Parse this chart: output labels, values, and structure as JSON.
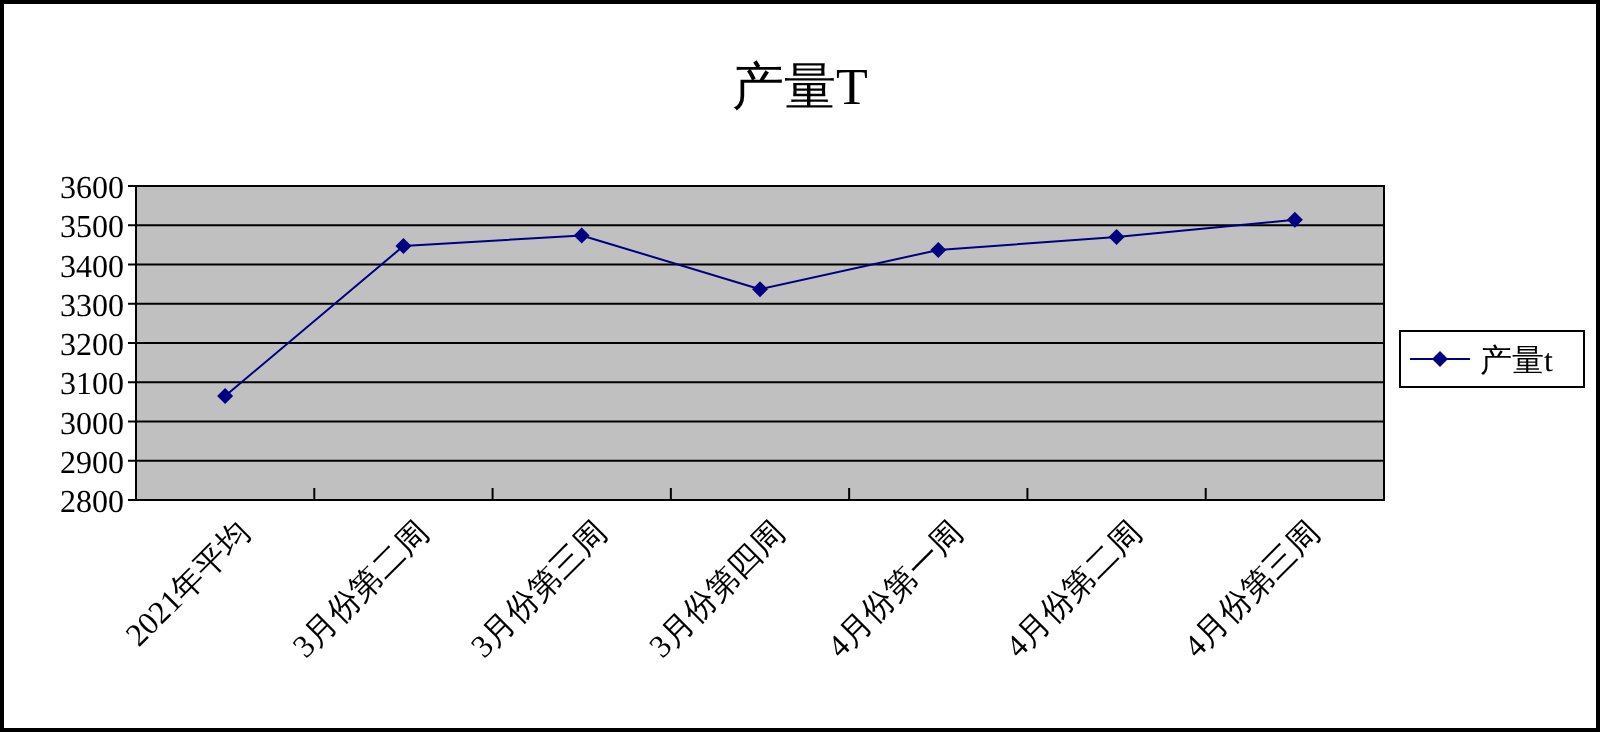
{
  "chart_data": {
    "type": "line",
    "title": "产量T",
    "categories": [
      "2021年平均",
      "3月份第二周",
      "3月份第三周",
      "3月份第四周",
      "4月份第一周",
      "4月份第二周",
      "4月份第三周"
    ],
    "series": [
      {
        "name": "产量t",
        "color": "#000080",
        "values": [
          3065,
          3447,
          3474,
          3337,
          3437,
          3470,
          3514
        ]
      }
    ],
    "ylim": [
      2800,
      3600
    ],
    "yticks": [
      2800,
      2900,
      3000,
      3100,
      3200,
      3300,
      3400,
      3500,
      3600
    ],
    "grid": "y",
    "legend": "right",
    "marker": "diamond"
  }
}
